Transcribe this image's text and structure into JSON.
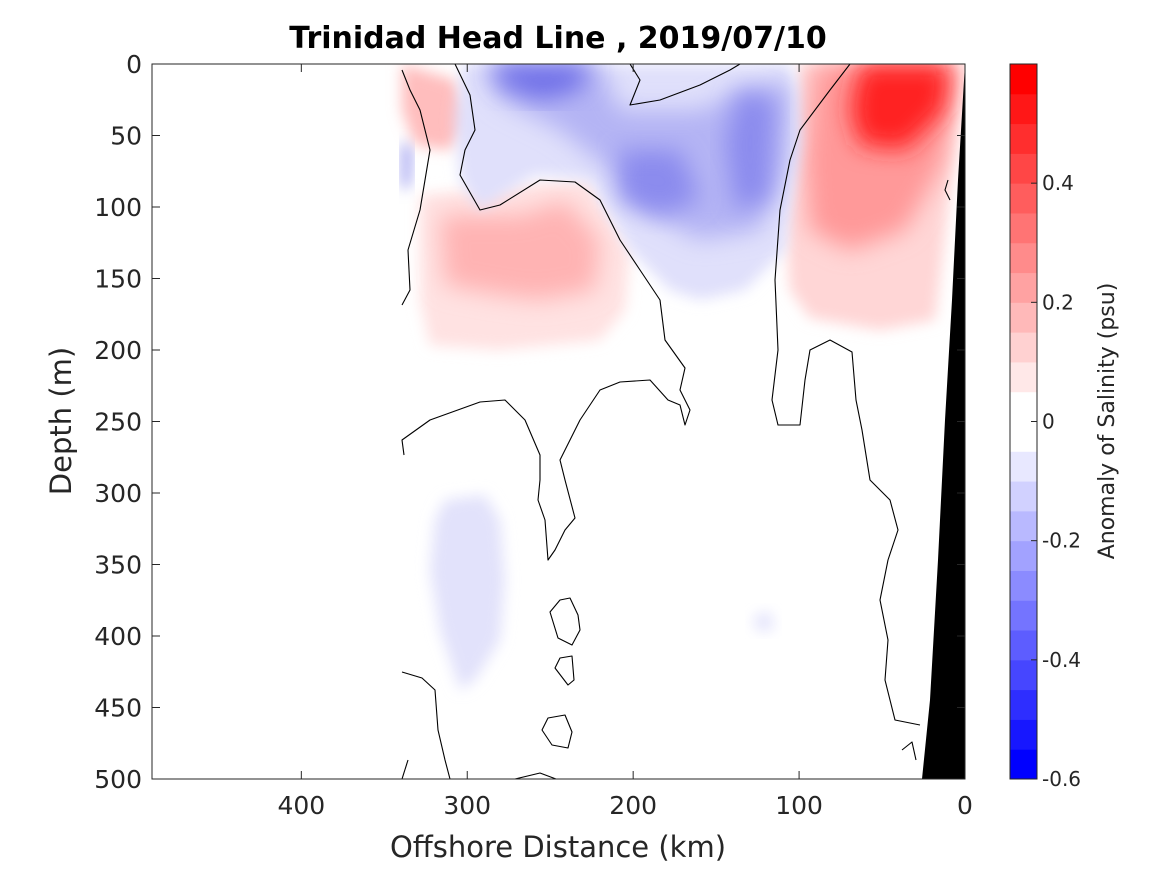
{
  "chart_data": {
    "type": "heatmap",
    "title": "Trinidad Head Line , 2019/07/10",
    "xlabel": "Offshore Distance (km)",
    "ylabel": "Depth (m)",
    "x_axis": {
      "lim": [
        490,
        0
      ],
      "reversed": true,
      "ticks": [
        400,
        300,
        200,
        100,
        0
      ],
      "tick_labels": [
        "400",
        "300",
        "200",
        "100",
        "0"
      ]
    },
    "y_axis": {
      "lim": [
        0,
        500
      ],
      "reversed": true,
      "ticks": [
        0,
        50,
        100,
        150,
        200,
        250,
        300,
        350,
        400,
        450,
        500
      ],
      "tick_labels": [
        "0",
        "50",
        "100",
        "150",
        "200",
        "250",
        "300",
        "350",
        "400",
        "450",
        "500"
      ]
    },
    "colorbar": {
      "label": "Anomaly of Salinity (psu)",
      "lim": [
        -0.6,
        0.6
      ],
      "levels": 24,
      "ticks": [
        -0.6,
        -0.4,
        -0.2,
        0,
        0.2,
        0.4
      ],
      "tick_labels": [
        "-0.6",
        "-0.4",
        "-0.2",
        "0",
        "0.2",
        "0.4"
      ],
      "colormap": "blue-white-red",
      "neg_end_color": "#0000ff",
      "pos_end_color": "#ff0000",
      "mid_color": "#ffffff"
    },
    "data_coverage_km": [
      0,
      340
    ],
    "contour_level": 0,
    "features": [
      {
        "name": "nearshore high salinity core",
        "x_km": 40,
        "depth_m": 40,
        "anomaly_psu": 0.55
      },
      {
        "name": "nearshore positive tongue",
        "x_km": 60,
        "depth_m": 100,
        "anomaly_psu": 0.3
      },
      {
        "name": "subsurface positive lens",
        "x_km": 275,
        "depth_m": 135,
        "anomaly_psu": 0.25
      },
      {
        "name": "secondary positive lens",
        "x_km": 245,
        "depth_m": 130,
        "anomaly_psu": 0.2
      },
      {
        "name": "upper negative core",
        "x_km": 265,
        "depth_m": 8,
        "anomaly_psu": -0.3
      },
      {
        "name": "mid negative core",
        "x_km": 165,
        "depth_m": 80,
        "anomaly_psu": -0.25
      },
      {
        "name": "near-surface negative core",
        "x_km": 130,
        "depth_m": 70,
        "anomaly_psu": -0.25
      },
      {
        "name": "shallow positive patch",
        "x_km": 320,
        "depth_m": 30,
        "anomaly_psu": 0.2
      },
      {
        "name": "deep weak negative plume",
        "x_km": 290,
        "depth_m": 370,
        "anomaly_psu": -0.08
      }
    ],
    "bathymetry_fill": "#000000"
  }
}
